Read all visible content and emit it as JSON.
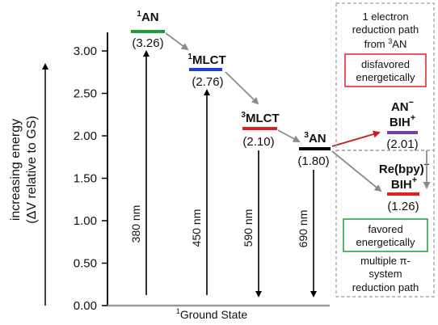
{
  "y_axis": {
    "label_line1": "increasing energy",
    "label_line2": "(ΔV relative to GS)",
    "ticks": [
      "0.00",
      "0.50",
      "1.00",
      "1.50",
      "2.00",
      "2.50",
      "3.00"
    ]
  },
  "ground_state": {
    "sup": "1",
    "text": "Ground State"
  },
  "levels": {
    "an1": {
      "sup": "1",
      "name": "AN",
      "value": "(3.26)",
      "color": "#1a9e3a"
    },
    "mlct1": {
      "sup": "1",
      "name": "MLCT",
      "value": "(2.76)",
      "color": "#1f3fd6"
    },
    "mlct3": {
      "sup": "3",
      "name": "MLCT",
      "value": "(2.10)",
      "color": "#e02020"
    },
    "an3": {
      "sup": "3",
      "name": "AN",
      "value": "(1.80)",
      "color": "#000000"
    },
    "an_bih": {
      "line1": "AN",
      "line1_sup": "−",
      "line2": "BIH",
      "line2_sup": "+",
      "value": "(2.01)",
      "color": "#7b3fa0"
    },
    "re_bih": {
      "line1": "Re(bpy)",
      "line1_sup": "−",
      "line2": "BIH",
      "line2_sup": "+",
      "value": "(1.26)",
      "color": "#e02020"
    }
  },
  "transitions": [
    "380 nm",
    "450 nm",
    "590 nm",
    "690 nm"
  ],
  "boxes": {
    "top_title_line1": "1 electron",
    "top_title_line2": "reduction path",
    "top_title_line3_pre": "from ",
    "top_title_line3_sup": "3",
    "top_title_line3_post": "AN",
    "disfavored_line1": "disfavored",
    "disfavored_line2": "energetically",
    "disfavored_color": "#e02020",
    "favored_line1": "favored",
    "favored_line2": "energetically",
    "favored_color": "#1a9e3a",
    "bottom_line1": "multiple π-",
    "bottom_line2": "system",
    "bottom_line3": "reduction path"
  }
}
